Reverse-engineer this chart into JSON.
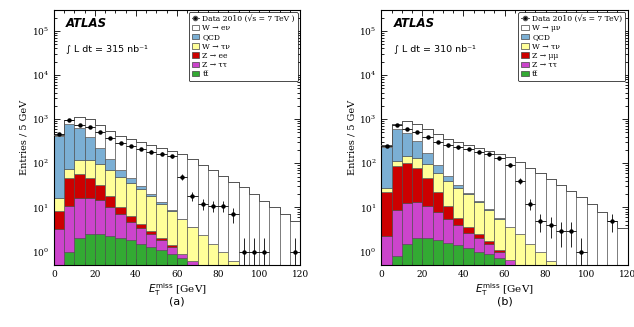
{
  "panel_a": {
    "lumi_text": "∫ L dt = 315 nb⁻¹",
    "legend_labels": [
      "Data 2010 (√s = 7 TeV )",
      "W → eν",
      "QCD",
      "W → τν",
      "Z → ee",
      "Z → ττ",
      "tt̅"
    ],
    "bins": [
      0,
      5,
      10,
      15,
      20,
      25,
      30,
      35,
      40,
      45,
      50,
      55,
      60,
      65,
      70,
      75,
      80,
      85,
      90,
      95,
      100,
      105,
      110,
      115,
      120
    ],
    "Wev": [
      30,
      200,
      500,
      600,
      520,
      420,
      350,
      310,
      270,
      240,
      210,
      185,
      155,
      120,
      90,
      68,
      50,
      38,
      28,
      20,
      14,
      10,
      7,
      5
    ],
    "QCD": [
      400,
      700,
      500,
      280,
      130,
      55,
      22,
      9,
      4,
      2,
      1,
      0.4,
      0.2,
      0.1,
      0,
      0,
      0,
      0,
      0,
      0,
      0,
      0,
      0,
      0
    ],
    "Wtauv": [
      8,
      30,
      60,
      70,
      65,
      52,
      40,
      30,
      22,
      15,
      10,
      7,
      4.5,
      3,
      2,
      1.2,
      0.8,
      0.5,
      0.3,
      0.2,
      0.1,
      0,
      0,
      0
    ],
    "Zee": [
      5,
      35,
      40,
      30,
      18,
      8,
      3,
      1.5,
      0.8,
      0.4,
      0.2,
      0.1,
      0,
      0,
      0,
      0,
      0,
      0,
      0,
      0,
      0,
      0,
      0,
      0
    ],
    "Ztautau": [
      3,
      10,
      14,
      14,
      12,
      8,
      5,
      3,
      2,
      1.2,
      0.7,
      0.4,
      0.2,
      0.1,
      0,
      0,
      0,
      0,
      0,
      0,
      0,
      0,
      0,
      0
    ],
    "ttbar": [
      0.3,
      1,
      2,
      2.5,
      2.5,
      2.2,
      2,
      1.8,
      1.5,
      1.3,
      1.1,
      0.9,
      0.7,
      0.5,
      0.4,
      0.3,
      0.2,
      0.1,
      0.1,
      0,
      0,
      0,
      0,
      0
    ],
    "data_x": [
      2.5,
      7.5,
      12.5,
      17.5,
      22.5,
      27.5,
      32.5,
      37.5,
      42.5,
      47.5,
      52.5,
      57.5,
      62.5,
      67.5,
      72.5,
      77.5,
      82.5,
      87.5,
      92.5,
      97.5,
      102.5,
      107.5,
      112.5,
      117.5
    ],
    "data_y": [
      450,
      950,
      750,
      650,
      500,
      370,
      290,
      250,
      210,
      185,
      165,
      145,
      50,
      18,
      12,
      11,
      11,
      7,
      1,
      1,
      1,
      0,
      0,
      1
    ]
  },
  "panel_b": {
    "lumi_text": "∫ L dt = 310 nb⁻¹",
    "legend_labels": [
      "Data 2010 (√s = 7 TeV)",
      "W → μν",
      "QCD",
      "W → τν",
      "Z → μμ",
      "Z → ττ",
      "tt̅"
    ],
    "bins": [
      0,
      5,
      10,
      15,
      20,
      25,
      30,
      35,
      40,
      45,
      50,
      55,
      60,
      65,
      70,
      75,
      80,
      85,
      90,
      95,
      100,
      105,
      110,
      115,
      120
    ],
    "Wmunv": [
      25,
      160,
      400,
      480,
      430,
      360,
      300,
      265,
      235,
      210,
      185,
      160,
      135,
      105,
      78,
      58,
      43,
      32,
      23,
      17,
      12,
      8,
      5,
      3.5
    ],
    "QCD": [
      200,
      500,
      350,
      180,
      75,
      28,
      10,
      4,
      1.5,
      0.6,
      0.3,
      0.1,
      0,
      0,
      0,
      0,
      0,
      0,
      0,
      0,
      0,
      0,
      0,
      0
    ],
    "Wtauv": [
      6,
      22,
      45,
      55,
      50,
      40,
      30,
      22,
      16,
      11,
      7,
      4.5,
      3,
      2,
      1.2,
      0.8,
      0.5,
      0.3,
      0.2,
      0.1,
      0,
      0,
      0,
      0
    ],
    "Zmumu": [
      20,
      80,
      90,
      65,
      35,
      14,
      5,
      2,
      1,
      0.5,
      0.2,
      0.1,
      0,
      0,
      0,
      0,
      0,
      0,
      0,
      0,
      0,
      0,
      0,
      0
    ],
    "Ztautau": [
      2,
      8,
      11,
      11,
      9,
      6,
      4,
      2.5,
      1.5,
      1,
      0.6,
      0.3,
      0.15,
      0.07,
      0,
      0,
      0,
      0,
      0,
      0,
      0,
      0,
      0,
      0
    ],
    "ttbar": [
      0.2,
      0.8,
      1.5,
      2,
      2,
      1.8,
      1.6,
      1.4,
      1.2,
      1,
      0.9,
      0.7,
      0.5,
      0.4,
      0.3,
      0.2,
      0.1,
      0.1,
      0,
      0,
      0,
      0,
      0,
      0
    ],
    "data_x": [
      2.5,
      7.5,
      12.5,
      17.5,
      22.5,
      27.5,
      32.5,
      37.5,
      42.5,
      47.5,
      52.5,
      57.5,
      62.5,
      67.5,
      72.5,
      77.5,
      82.5,
      87.5,
      92.5,
      97.5,
      102.5,
      107.5,
      112.5,
      117.5
    ],
    "data_y": [
      250,
      750,
      600,
      500,
      390,
      310,
      255,
      230,
      210,
      185,
      160,
      130,
      90,
      40,
      12,
      5,
      4,
      3,
      3,
      1,
      0,
      0,
      5,
      0
    ]
  },
  "colors": {
    "signal": "#ffffff",
    "QCD": "#7bafd4",
    "Wtauv": "#ffff99",
    "Zee": "#cc0000",
    "Zmumu": "#cc0000",
    "Ztautau": "#cc44cc",
    "ttbar": "#33aa33"
  },
  "xlabel": "$E_{\\mathrm{T}}^{\\mathrm{miss}}$ [GeV]",
  "ylabel": "Entries / 5 GeV",
  "xlim": [
    0,
    120
  ],
  "ylim": [
    0.5,
    300000
  ]
}
